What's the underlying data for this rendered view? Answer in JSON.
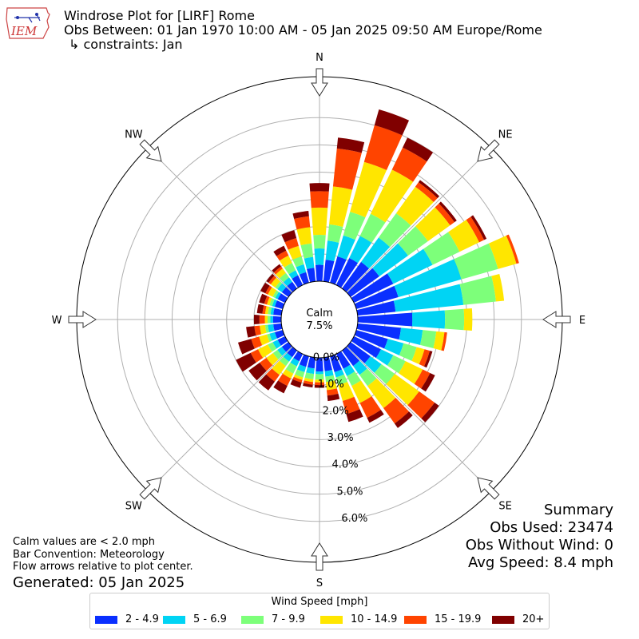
{
  "header": {
    "logo_text": "IEM",
    "title": "Windrose Plot for [LIRF] Rome",
    "subtitle": "Obs Between: 01 Jan 1970 10:00 AM - 05 Jan 2025 09:50 AM Europe/Rome",
    "constraints": "↳ constraints: Jan"
  },
  "footer": {
    "calm_note": "Calm values are < 2.0 mph",
    "bar_convention": "Bar Convention: Meteorology",
    "flow_note": "Flow arrows relative to plot center.",
    "generated": "Generated: 05 Jan 2025"
  },
  "summary": {
    "heading": "Summary",
    "obs_used": "Obs Used: 23474",
    "obs_without_wind": "Obs Without Wind: 0",
    "avg_speed": "Avg Speed: 8.4 mph"
  },
  "legend": {
    "title": "Wind Speed [mph]",
    "items": [
      {
        "label": "2 - 4.9",
        "color": "#0a2fff"
      },
      {
        "label": "5 - 6.9",
        "color": "#00d4f4"
      },
      {
        "label": "7 - 9.9",
        "color": "#7dff7a"
      },
      {
        "label": "10 - 14.9",
        "color": "#ffe600"
      },
      {
        "label": "15 - 19.9",
        "color": "#ff4400"
      },
      {
        "label": "20+",
        "color": "#800000"
      }
    ]
  },
  "chart_data": {
    "type": "windrose",
    "calm_label": "Calm",
    "calm_value": "7.5%",
    "radial_ticks": [
      "0.0%",
      "1.0%",
      "2.0%",
      "3.0%",
      "4.0%",
      "5.0%",
      "6.0%"
    ],
    "radial_max": 7.5,
    "compass_labels": [
      "N",
      "NE",
      "E",
      "SE",
      "S",
      "SW",
      "W",
      "NW"
    ],
    "speed_bins": [
      "2 - 4.9",
      "5 - 6.9",
      "7 - 9.9",
      "10 - 14.9",
      "15 - 19.9",
      "20+"
    ],
    "directions": [
      {
        "deg": 0,
        "cum": [
          0.6,
          1.2,
          1.7,
          2.7,
          3.3,
          3.6
        ]
      },
      {
        "deg": 10,
        "cum": [
          0.8,
          1.5,
          2.1,
          3.5,
          4.9,
          5.3
        ]
      },
      {
        "deg": 20,
        "cum": [
          1.0,
          1.8,
          2.7,
          4.6,
          6.0,
          6.6
        ]
      },
      {
        "deg": 30,
        "cum": [
          1.1,
          2.0,
          2.9,
          4.7,
          5.6,
          6.0
        ]
      },
      {
        "deg": 40,
        "cum": [
          1.2,
          2.3,
          3.4,
          4.6,
          4.8,
          4.9
        ]
      },
      {
        "deg": 50,
        "cum": [
          1.3,
          2.6,
          3.5,
          4.5,
          4.7,
          4.8
        ]
      },
      {
        "deg": 60,
        "cum": [
          1.6,
          3.2,
          4.3,
          5.1,
          5.3,
          5.4
        ]
      },
      {
        "deg": 70,
        "cum": [
          1.6,
          4.0,
          5.4,
          6.1,
          6.2,
          6.2
        ]
      },
      {
        "deg": 80,
        "cum": [
          1.4,
          3.9,
          5.1,
          5.4,
          5.4,
          5.4
        ]
      },
      {
        "deg": 90,
        "cum": [
          2.0,
          3.2,
          3.9,
          4.2,
          4.2,
          4.2
        ]
      },
      {
        "deg": 100,
        "cum": [
          1.6,
          2.4,
          2.9,
          3.2,
          3.3,
          3.3
        ]
      },
      {
        "deg": 110,
        "cum": [
          1.2,
          1.8,
          2.3,
          2.6,
          2.8,
          2.9
        ]
      },
      {
        "deg": 120,
        "cum": [
          1.1,
          1.6,
          2.1,
          2.8,
          3.1,
          3.3
        ]
      },
      {
        "deg": 130,
        "cum": [
          0.9,
          1.4,
          2.0,
          3.1,
          3.8,
          4.0
        ]
      },
      {
        "deg": 140,
        "cum": [
          0.7,
          1.1,
          1.6,
          2.6,
          3.3,
          3.5
        ]
      },
      {
        "deg": 150,
        "cum": [
          0.6,
          0.9,
          1.3,
          2.0,
          2.6,
          2.8
        ]
      },
      {
        "deg": 160,
        "cum": [
          0.6,
          0.8,
          1.1,
          1.7,
          2.2,
          2.5
        ]
      },
      {
        "deg": 170,
        "cum": [
          0.5,
          0.7,
          0.9,
          1.2,
          1.4,
          1.6
        ]
      },
      {
        "deg": 180,
        "cum": [
          0.5,
          0.6,
          0.8,
          0.9,
          1.0,
          1.1
        ]
      },
      {
        "deg": 190,
        "cum": [
          0.4,
          0.6,
          0.8,
          0.9,
          1.0,
          1.1
        ]
      },
      {
        "deg": 200,
        "cum": [
          0.4,
          0.6,
          0.8,
          0.9,
          1.0,
          1.2
        ]
      },
      {
        "deg": 210,
        "cum": [
          0.3,
          0.5,
          0.8,
          1.0,
          1.3,
          1.6
        ]
      },
      {
        "deg": 220,
        "cum": [
          0.3,
          0.5,
          0.7,
          1.1,
          1.4,
          1.8
        ]
      },
      {
        "deg": 230,
        "cum": [
          0.3,
          0.5,
          0.7,
          1.0,
          1.3,
          1.8
        ]
      },
      {
        "deg": 240,
        "cum": [
          0.3,
          0.5,
          0.7,
          1.1,
          1.4,
          2.0
        ]
      },
      {
        "deg": 250,
        "cum": [
          0.3,
          0.5,
          0.6,
          0.9,
          1.2,
          1.7
        ]
      },
      {
        "deg": 260,
        "cum": [
          0.3,
          0.5,
          0.6,
          0.8,
          1.0,
          1.3
        ]
      },
      {
        "deg": 270,
        "cum": [
          0.3,
          0.4,
          0.5,
          0.6,
          0.8,
          1.0
        ]
      },
      {
        "deg": 280,
        "cum": [
          0.3,
          0.4,
          0.5,
          0.6,
          0.7,
          0.9
        ]
      },
      {
        "deg": 290,
        "cum": [
          0.3,
          0.4,
          0.5,
          0.6,
          0.7,
          0.9
        ]
      },
      {
        "deg": 300,
        "cum": [
          0.3,
          0.4,
          0.5,
          0.7,
          0.8,
          1.0
        ]
      },
      {
        "deg": 310,
        "cum": [
          0.3,
          0.5,
          0.6,
          0.8,
          0.9,
          1.0
        ]
      },
      {
        "deg": 320,
        "cum": [
          0.3,
          0.5,
          0.7,
          0.9,
          1.0,
          1.1
        ]
      },
      {
        "deg": 330,
        "cum": [
          0.4,
          0.6,
          0.9,
          1.2,
          1.4,
          1.6
        ]
      },
      {
        "deg": 340,
        "cum": [
          0.4,
          0.7,
          1.0,
          1.4,
          1.7,
          2.0
        ]
      },
      {
        "deg": 350,
        "cum": [
          0.5,
          0.9,
          1.4,
          2.0,
          2.4,
          2.6
        ]
      }
    ]
  }
}
